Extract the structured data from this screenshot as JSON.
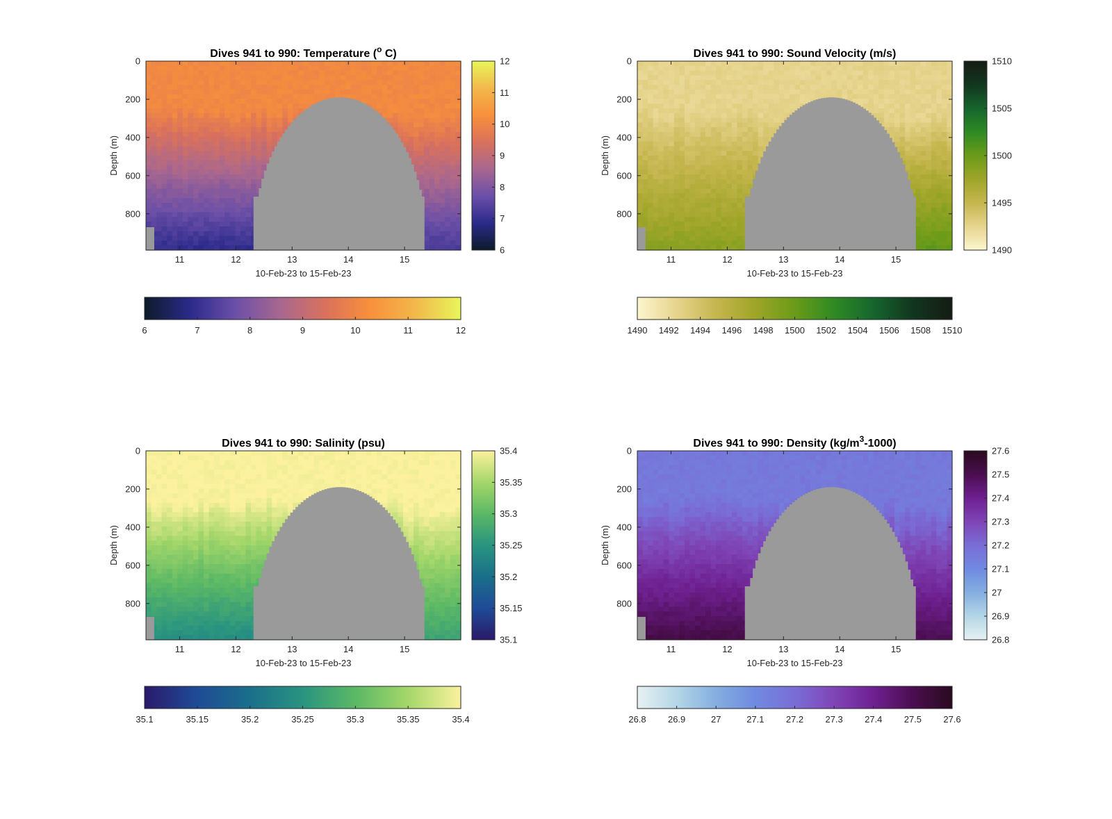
{
  "chart_data": [
    {
      "type": "heatmap",
      "title": "Dives 941 to 990: Temperature (° C)",
      "title_parts": {
        "pre": "Dives 941 to 990: Temperature (",
        "sup": "o",
        "post": " C)"
      },
      "xlabel": "10-Feb-23 to 15-Feb-23",
      "ylabel": "Depth (m)",
      "xticks": [
        "11",
        "12",
        "13",
        "14",
        "15"
      ],
      "yticks": [
        "0",
        "200",
        "400",
        "600",
        "800"
      ],
      "xlim": [
        10.4,
        16.0
      ],
      "ylim": [
        990,
        0
      ],
      "colorbar": {
        "min": 6,
        "max": 12,
        "ticks": [
          "6",
          "7",
          "8",
          "9",
          "10",
          "11",
          "12"
        ],
        "colors": [
          "#0d1b2a",
          "#2b2a8a",
          "#6b4fa8",
          "#a8678f",
          "#d9715c",
          "#f8903c",
          "#f2b84b",
          "#e8f65a"
        ]
      },
      "horizontal_colorbar_ticks": [
        "6",
        "7",
        "8",
        "9",
        "10",
        "11",
        "12"
      ],
      "values": {
        "surface": 10.1,
        "deep_west": 6.9,
        "deep_east": 7.2
      },
      "no_data_color": "#9a9a9a"
    },
    {
      "type": "heatmap",
      "title": "Dives 941 to 990: Sound Velocity (m/s)",
      "title_parts": {
        "pre": "Dives 941 to 990: Sound Velocity (m/s)",
        "sup": "",
        "post": ""
      },
      "xlabel": "10-Feb-23 to 15-Feb-23",
      "ylabel": "Depth (m)",
      "xticks": [
        "11",
        "12",
        "13",
        "14",
        "15"
      ],
      "yticks": [
        "0",
        "200",
        "400",
        "600",
        "800"
      ],
      "xlim": [
        10.4,
        16.0
      ],
      "ylim": [
        990,
        0
      ],
      "colorbar": {
        "min": 1490,
        "max": 1510,
        "ticks": [
          "1490",
          "1495",
          "1500",
          "1505",
          "1510"
        ],
        "colors": [
          "#fcf6cf",
          "#e6d48d",
          "#c6b64f",
          "#9ea528",
          "#6a9b19",
          "#2f8a24",
          "#16652e",
          "#12361f",
          "#151c13"
        ]
      },
      "horizontal_colorbar_ticks": [
        "1490",
        "1492",
        "1494",
        "1496",
        "1498",
        "1500",
        "1502",
        "1504",
        "1506",
        "1508",
        "1510"
      ],
      "values": {
        "surface": 1492.5,
        "deep_west": 1498.5,
        "deep_east": 1500.5
      },
      "no_data_color": "#9a9a9a"
    },
    {
      "type": "heatmap",
      "title": "Dives 941 to 990: Salinity (psu)",
      "title_parts": {
        "pre": "Dives 941 to 990: Salinity (psu)",
        "sup": "",
        "post": ""
      },
      "xlabel": "10-Feb-23 to 15-Feb-23",
      "ylabel": "Depth (m)",
      "xticks": [
        "11",
        "12",
        "13",
        "14",
        "15"
      ],
      "yticks": [
        "0",
        "200",
        "400",
        "600",
        "800"
      ],
      "xlim": [
        10.4,
        16.0
      ],
      "ylim": [
        990,
        0
      ],
      "colorbar": {
        "min": 35.1,
        "max": 35.4,
        "ticks": [
          "35.1",
          "35.15",
          "35.2",
          "35.25",
          "35.3",
          "35.35",
          "35.4"
        ],
        "colors": [
          "#2a1a6a",
          "#1f4b96",
          "#1a6f8a",
          "#2a9480",
          "#5bb865",
          "#a5d76a",
          "#fbf19e"
        ]
      },
      "horizontal_colorbar_ticks": [
        "35.1",
        "35.15",
        "35.2",
        "35.25",
        "35.3",
        "35.35",
        "35.4"
      ],
      "values": {
        "surface": 35.4,
        "deep_west": 35.24,
        "deep_east": 35.27
      },
      "no_data_color": "#9a9a9a"
    },
    {
      "type": "heatmap",
      "title": "Dives 941 to 990: Density (kg/m3-1000)",
      "title_parts": {
        "pre": "Dives 941 to 990: Density (kg/m",
        "sup": "3",
        "post": "-1000)"
      },
      "xlabel": "10-Feb-23 to 15-Feb-23",
      "ylabel": "Depth (m)",
      "xticks": [
        "11",
        "12",
        "13",
        "14",
        "15"
      ],
      "yticks": [
        "0",
        "200",
        "400",
        "600",
        "800"
      ],
      "xlim": [
        10.4,
        16.0
      ],
      "ylim": [
        990,
        0
      ],
      "colorbar": {
        "min": 26.8,
        "max": 27.6,
        "ticks": [
          "26.8",
          "26.9",
          "27",
          "27.1",
          "27.2",
          "27.3",
          "27.4",
          "27.5",
          "27.6"
        ],
        "colors": [
          "#e6f1f2",
          "#b4d6e6",
          "#85aee0",
          "#6f8ae0",
          "#7a6dd6",
          "#7f45b6",
          "#6e2090",
          "#4b0e50",
          "#2a0a1e"
        ]
      },
      "horizontal_colorbar_ticks": [
        "26.8",
        "26.9",
        "27",
        "27.1",
        "27.2",
        "27.3",
        "27.4",
        "27.5",
        "27.6"
      ],
      "values": {
        "surface": 27.16,
        "deep_west": 27.52,
        "deep_east": 27.5
      },
      "no_data_color": "#9a9a9a"
    }
  ]
}
